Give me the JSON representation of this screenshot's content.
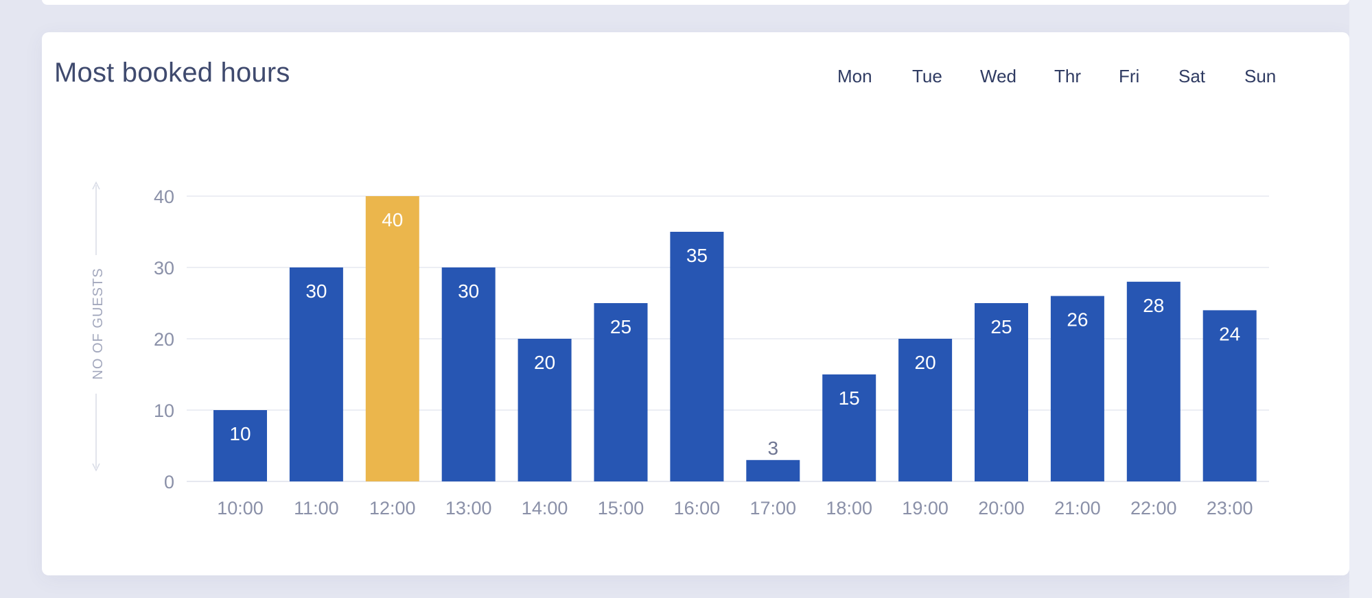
{
  "card": {
    "title": "Most booked hours"
  },
  "day_tabs": [
    "Mon",
    "Tue",
    "Wed",
    "Thr",
    "Fri",
    "Sat",
    "Sun"
  ],
  "colors": {
    "bar": "#2756b3",
    "highlight": "#ebb64c",
    "grid": "#e6e8f0",
    "axis_text": "#8a90a8"
  },
  "chart_data": {
    "type": "bar",
    "title": "Most booked hours",
    "xlabel": "",
    "ylabel": "NO OF GUESTS",
    "categories": [
      "10:00",
      "11:00",
      "12:00",
      "13:00",
      "14:00",
      "15:00",
      "16:00",
      "17:00",
      "18:00",
      "19:00",
      "20:00",
      "21:00",
      "22:00",
      "23:00"
    ],
    "values": [
      10,
      30,
      40,
      30,
      20,
      25,
      35,
      3,
      15,
      20,
      25,
      26,
      28,
      24
    ],
    "highlighted_category": "12:00",
    "ylim": [
      0,
      40
    ],
    "yticks": [
      0,
      10,
      20,
      30,
      40
    ],
    "grid": true,
    "data_labels": true
  }
}
